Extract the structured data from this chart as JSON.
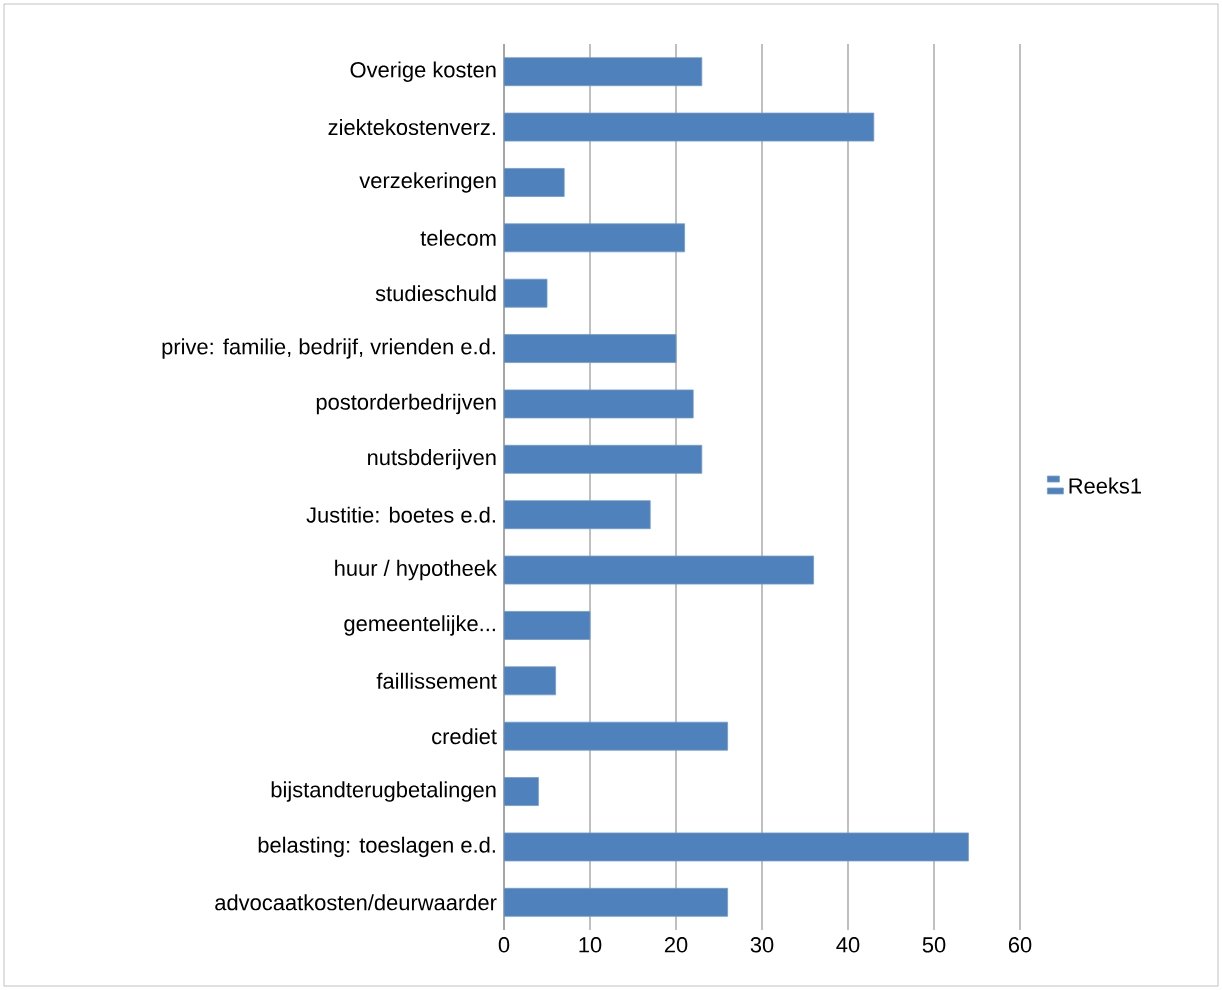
{
  "chart_data": {
    "type": "bar",
    "orientation": "horizontal",
    "categories": [
      "Overige kosten",
      "ziektekostenverz.",
      "verzekeringen",
      "telecom",
      "studieschuld",
      "prive: familie, bedrijf, vrienden e.d.",
      "postorderbedrijven",
      "nutsbderijven",
      "Justitie: boetes e.d.",
      "huur / hypotheek",
      "gemeentelijke...",
      "faillissement",
      "crediet",
      "bijstandterugbetalingen",
      "belasting: toeslagen e.d.",
      "advocaatkosten/deurwaarder"
    ],
    "series": [
      {
        "name": "Reeks1",
        "color": "#4f81bd",
        "values": [
          23,
          43,
          7,
          21,
          5,
          20,
          22,
          23,
          17,
          36,
          10,
          6,
          26,
          4,
          54,
          26
        ]
      }
    ],
    "xlim": [
      0,
      60
    ],
    "xticks": [
      0,
      10,
      20,
      30,
      40,
      50,
      60
    ],
    "grid": "x",
    "legend": "right"
  }
}
